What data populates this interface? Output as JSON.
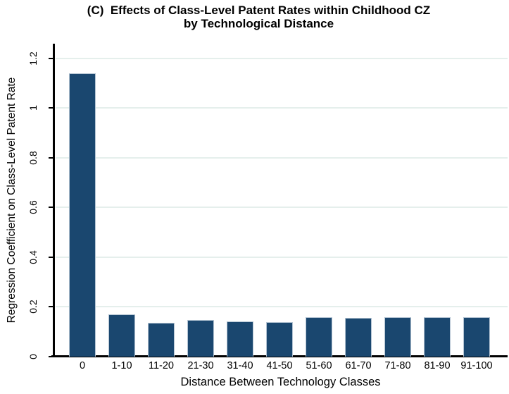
{
  "title": {
    "line1": "(C)  Effects of Class-Level Patent Rates within Childhood CZ",
    "line2": "by Technological Distance"
  },
  "chart_data": {
    "type": "bar",
    "title": "(C) Effects of Class-Level Patent Rates within Childhood CZ by Technological Distance",
    "categories": [
      "0",
      "1-10",
      "11-20",
      "21-30",
      "31-40",
      "41-50",
      "51-60",
      "61-70",
      "71-80",
      "81-90",
      "91-100"
    ],
    "values": [
      1.14,
      0.17,
      0.135,
      0.147,
      0.141,
      0.14,
      0.16,
      0.155,
      0.158,
      0.16,
      0.16
    ],
    "xlabel": "Distance Between Technology Classes",
    "ylabel": "Regression Coefficient on Class-Level Patent Rate",
    "ylim": [
      0,
      1.2
    ],
    "yticks": [
      0,
      0.2,
      0.4,
      0.6,
      0.8,
      1,
      1.2
    ],
    "ytick_labels": [
      "0",
      "0.2",
      "0.4",
      "0.6",
      "0.8",
      "1",
      "1.2"
    ],
    "grid": true,
    "legend_position": "none",
    "colors": {
      "bar": "#1a476f",
      "bar_edge": "#b3c3d2",
      "grid": "#e5efec",
      "axis": "#000000",
      "text": "#000000"
    }
  }
}
